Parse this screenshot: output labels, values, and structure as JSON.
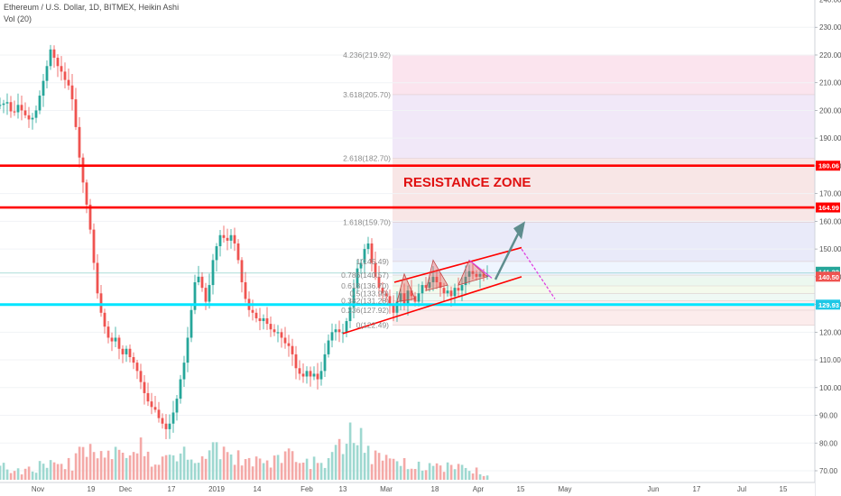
{
  "header": {
    "title": "Ethereum / U.S. Dollar, 1D, BITMEX, Heikin Ashi",
    "indicator": "Vol (20)"
  },
  "colors": {
    "up": "#26a69a",
    "down": "#ef5350",
    "up_vol": "#9ed8d0",
    "down_vol": "#f4a9a7",
    "resistance": "#ff0000",
    "support": "#00e5ff",
    "projection_up": "#5e8d8e",
    "projection_down": "#e040e0"
  },
  "chart_data": {
    "type": "candlestick",
    "title": "Ethereum / U.S. Dollar, 1D, BITMEX, Heikin Ashi",
    "y_ticks": [
      70,
      80,
      90,
      100,
      110,
      120,
      130,
      140,
      150,
      160,
      170,
      180,
      190,
      200,
      210,
      220,
      230,
      240
    ],
    "y_tick_labels": [
      "70.00",
      "80.00",
      "90.00",
      "100.00",
      "110.00",
      "120.00",
      "130.00",
      "140.00",
      "150.00",
      "160.00",
      "170.00",
      "180.00",
      "190.00",
      "200.00",
      "210.00",
      "220.00",
      "230.00",
      "240.00"
    ],
    "x_ticks": [
      "Nov",
      "19",
      "Dec",
      "17",
      "2019",
      "14",
      "Feb",
      "13",
      "Mar",
      "18",
      "Apr",
      "15",
      "May",
      "Jun",
      "17",
      "Jul",
      "15"
    ],
    "close_path": [
      [
        0,
        202
      ],
      [
        8,
        203
      ],
      [
        14,
        198
      ],
      [
        20,
        202
      ],
      [
        26,
        199
      ],
      [
        34,
        196
      ],
      [
        40,
        200
      ],
      [
        46,
        208
      ],
      [
        52,
        216
      ],
      [
        56,
        222
      ],
      [
        60,
        219
      ],
      [
        64,
        216
      ],
      [
        68,
        214
      ],
      [
        72,
        211
      ],
      [
        78,
        208
      ],
      [
        82,
        200
      ],
      [
        86,
        188
      ],
      [
        90,
        178
      ],
      [
        94,
        170
      ],
      [
        98,
        162
      ],
      [
        102,
        152
      ],
      [
        106,
        138
      ],
      [
        110,
        130
      ],
      [
        114,
        124
      ],
      [
        118,
        120
      ],
      [
        122,
        116
      ],
      [
        128,
        118
      ],
      [
        132,
        114
      ],
      [
        136,
        112
      ],
      [
        140,
        114
      ],
      [
        144,
        111
      ],
      [
        148,
        109
      ],
      [
        152,
        106
      ],
      [
        156,
        102
      ],
      [
        160,
        98
      ],
      [
        164,
        95
      ],
      [
        168,
        93
      ],
      [
        172,
        92
      ],
      [
        176,
        89
      ],
      [
        180,
        87
      ],
      [
        184,
        85
      ],
      [
        188,
        87
      ],
      [
        192,
        91
      ],
      [
        196,
        96
      ],
      [
        200,
        103
      ],
      [
        204,
        109
      ],
      [
        208,
        118
      ],
      [
        212,
        128
      ],
      [
        216,
        138
      ],
      [
        220,
        140
      ],
      [
        224,
        136
      ],
      [
        228,
        131
      ],
      [
        232,
        137
      ],
      [
        236,
        146
      ],
      [
        240,
        151
      ],
      [
        244,
        155
      ],
      [
        248,
        154
      ],
      [
        252,
        153
      ],
      [
        256,
        155
      ],
      [
        260,
        152
      ],
      [
        264,
        146
      ],
      [
        268,
        138
      ],
      [
        272,
        132
      ],
      [
        276,
        128
      ],
      [
        280,
        127
      ],
      [
        284,
        125
      ],
      [
        288,
        124
      ],
      [
        292,
        125
      ],
      [
        296,
        123
      ],
      [
        300,
        121
      ],
      [
        304,
        120
      ],
      [
        308,
        120
      ],
      [
        312,
        118
      ],
      [
        316,
        116
      ],
      [
        320,
        115
      ],
      [
        324,
        112
      ],
      [
        328,
        107
      ],
      [
        332,
        105
      ],
      [
        336,
        104
      ],
      [
        340,
        106
      ],
      [
        344,
        104
      ],
      [
        348,
        105
      ],
      [
        352,
        103
      ],
      [
        356,
        106
      ],
      [
        360,
        112
      ],
      [
        364,
        117
      ],
      [
        368,
        120
      ],
      [
        372,
        121
      ],
      [
        376,
        120
      ],
      [
        380,
        120
      ],
      [
        384,
        124
      ],
      [
        388,
        129
      ],
      [
        392,
        136
      ],
      [
        396,
        143
      ],
      [
        400,
        145
      ],
      [
        404,
        150
      ],
      [
        408,
        152
      ],
      [
        412,
        145
      ],
      [
        416,
        140
      ],
      [
        420,
        136
      ],
      [
        424,
        134
      ],
      [
        428,
        133
      ],
      [
        432,
        130
      ],
      [
        436,
        127
      ],
      [
        440,
        131
      ],
      [
        444,
        134
      ],
      [
        448,
        130
      ],
      [
        452,
        135
      ],
      [
        456,
        133
      ],
      [
        460,
        131
      ],
      [
        464,
        134
      ],
      [
        468,
        137
      ],
      [
        472,
        136
      ],
      [
        476,
        138
      ],
      [
        480,
        140
      ],
      [
        484,
        138
      ],
      [
        488,
        136
      ],
      [
        492,
        134
      ],
      [
        496,
        135
      ],
      [
        500,
        133
      ],
      [
        504,
        136
      ],
      [
        508,
        135
      ],
      [
        512,
        137
      ],
      [
        516,
        140
      ],
      [
        520,
        142
      ],
      [
        524,
        141
      ],
      [
        528,
        140
      ],
      [
        532,
        141
      ],
      [
        536,
        140
      ],
      [
        540,
        140.5
      ]
    ],
    "volume_path": [
      [
        0,
        14
      ],
      [
        20,
        10
      ],
      [
        40,
        12
      ],
      [
        52,
        20
      ],
      [
        60,
        14
      ],
      [
        80,
        18
      ],
      [
        90,
        30
      ],
      [
        100,
        40
      ],
      [
        110,
        34
      ],
      [
        120,
        26
      ],
      [
        140,
        30
      ],
      [
        150,
        28
      ],
      [
        160,
        36
      ],
      [
        170,
        24
      ],
      [
        180,
        20
      ],
      [
        200,
        28
      ],
      [
        215,
        34
      ],
      [
        225,
        22
      ],
      [
        240,
        32
      ],
      [
        260,
        26
      ],
      [
        280,
        22
      ],
      [
        300,
        20
      ],
      [
        320,
        24
      ],
      [
        340,
        18
      ],
      [
        360,
        22
      ],
      [
        380,
        36
      ],
      [
        392,
        50
      ],
      [
        400,
        44
      ],
      [
        410,
        30
      ],
      [
        420,
        26
      ],
      [
        430,
        22
      ],
      [
        440,
        18
      ],
      [
        460,
        16
      ],
      [
        480,
        16
      ],
      [
        500,
        14
      ],
      [
        520,
        12
      ],
      [
        540,
        6
      ]
    ],
    "resistance_levels": [
      {
        "price": 180.06,
        "label": "180.06"
      },
      {
        "price": 164.99,
        "label": "164.99"
      }
    ],
    "support_level": {
      "price": 129.93,
      "label": "129.93"
    },
    "current_prices": [
      {
        "price": 141.32,
        "label": "141.32"
      },
      {
        "price": 140.5,
        "label": "140.50"
      }
    ],
    "fib_levels": [
      {
        "ratio": "4.236",
        "price": 219.92,
        "label": "4.236(219.92)"
      },
      {
        "ratio": "3.618",
        "price": 205.7,
        "label": "3.618(205.70)"
      },
      {
        "ratio": "2.618",
        "price": 182.7,
        "label": "2.618(182.70)"
      },
      {
        "ratio": "1.618",
        "price": 159.7,
        "label": "1.618(159.70)"
      },
      {
        "ratio": "1",
        "price": 145.49,
        "label": "1(145.49)"
      },
      {
        "ratio": "0.786",
        "price": 140.57,
        "label": "0.786(140.57)"
      },
      {
        "ratio": "0.618",
        "price": 136.7,
        "label": "0.618(136.70)"
      },
      {
        "ratio": "0.5",
        "price": 133.99,
        "label": "0.5(133.99)"
      },
      {
        "ratio": "0.382",
        "price": 131.28,
        "label": "0.382(131.28)"
      },
      {
        "ratio": "0.236",
        "price": 127.92,
        "label": "0.236(127.92)"
      },
      {
        "ratio": "0",
        "price": 122.49,
        "label": "0(122.49)"
      }
    ],
    "annotation": "RESISTANCE ZONE"
  }
}
